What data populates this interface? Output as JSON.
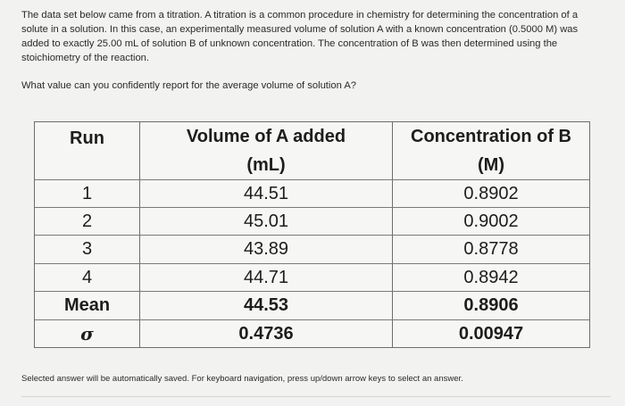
{
  "intro": "The data set below came from a titration. A titration is a common procedure in chemistry for determining the concentration of a solute in a solution. In this case, an experimentally measured volume of solution A with a known concentration (0.5000 M) was added to exactly 25.00 mL of solution B of unknown concentration. The concentration of B was then determined using the stoichiometry of the reaction.",
  "question": "What value can you confidently report for the average volume of solution A?",
  "table": {
    "headers": {
      "run": "Run",
      "volume_line1": "Volume of A added",
      "volume_line2": "(mL)",
      "conc_line1": "Concentration of B",
      "conc_line2": "(M)"
    },
    "rows": [
      {
        "run": "1",
        "volume": "44.51",
        "conc": "0.8902"
      },
      {
        "run": "2",
        "volume": "45.01",
        "conc": "0.9002"
      },
      {
        "run": "3",
        "volume": "43.89",
        "conc": "0.8778"
      },
      {
        "run": "4",
        "volume": "44.71",
        "conc": "0.8942"
      }
    ],
    "mean": {
      "label": "Mean",
      "volume": "44.53",
      "conc": "0.8906"
    },
    "sigma": {
      "label": "σ",
      "volume": "0.4736",
      "conc": "0.00947"
    }
  },
  "footer": "Selected answer will be automatically saved. For keyboard navigation, press up/down arrow keys to select an answer."
}
